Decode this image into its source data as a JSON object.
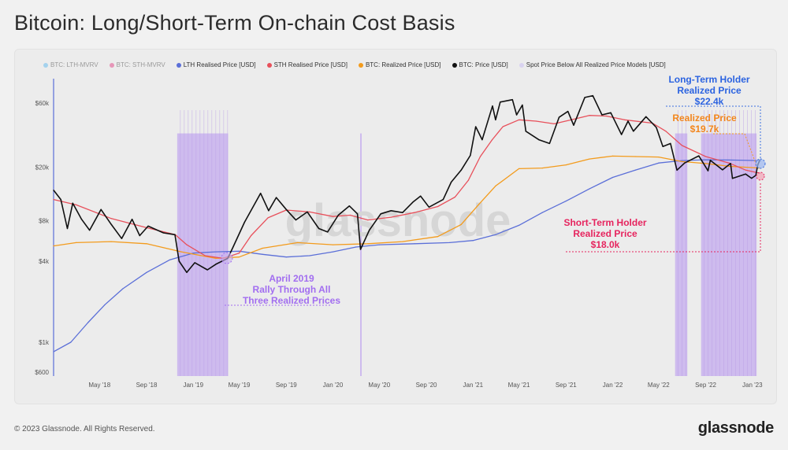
{
  "title": "Bitcoin: Long/Short-Term On-chain Cost Basis",
  "watermark": "glassnode",
  "footer": {
    "copyright": "© 2023 Glassnode. All Rights Reserved.",
    "logo": "glassnode"
  },
  "colors": {
    "lth": "#5b6fd8",
    "sth": "#e8505b",
    "realized": "#f39b1c",
    "price": "#111111",
    "shade": "#c9b3ee",
    "lth_mvrv": "#4fb3f0",
    "sth_mvrv": "#e0307a"
  },
  "legend": [
    {
      "label": "BTC: LTH-MVRV",
      "color": "#4fb3f0",
      "faded": true
    },
    {
      "label": "BTC: STH-MVRV",
      "color": "#e0307a",
      "faded": true
    },
    {
      "label": "LTH Realised Price [USD]",
      "color": "#5b6fd8",
      "faded": false
    },
    {
      "label": "STH Realised Price [USD]",
      "color": "#e8505b",
      "faded": false
    },
    {
      "label": "BTC: Realized Price [USD]",
      "color": "#f39b1c",
      "faded": false
    },
    {
      "label": "BTC: Price [USD]",
      "color": "#111111",
      "faded": false
    },
    {
      "label": "Spot Price Below All Realized Price Models [USD]",
      "color": "#d9d3f0",
      "faded": false
    }
  ],
  "annotations": {
    "april2019": [
      "April 2019",
      "Rally Through All",
      "Three Realized Prices"
    ],
    "lth": [
      "Long-Term Holder",
      "Realized Price",
      "$22.4k"
    ],
    "realized": [
      "Realized Price",
      "$19.7k"
    ],
    "sth": [
      "Short-Term Holder",
      "Realized Price",
      "$18.0k"
    ]
  },
  "chart_data": {
    "type": "line",
    "title": "Bitcoin: Long/Short-Term On-chain Cost Basis",
    "y_scale": "log",
    "ylim": [
      600,
      80000
    ],
    "xlim": [
      "2018-01-01",
      "2023-01-22"
    ],
    "y_ticks": [
      {
        "v": 600,
        "label": "$600"
      },
      {
        "v": 1000,
        "label": "$1k"
      },
      {
        "v": 4000,
        "label": "$4k"
      },
      {
        "v": 8000,
        "label": "$8k"
      },
      {
        "v": 20000,
        "label": "$20k"
      },
      {
        "v": 60000,
        "label": "$60k"
      }
    ],
    "x_ticks": [
      {
        "d": "2018-05-01",
        "label": "May '18"
      },
      {
        "d": "2018-09-01",
        "label": "Sep '18"
      },
      {
        "d": "2019-01-01",
        "label": "Jan '19"
      },
      {
        "d": "2019-05-01",
        "label": "May '19"
      },
      {
        "d": "2019-09-01",
        "label": "Sep '19"
      },
      {
        "d": "2020-01-01",
        "label": "Jan '20"
      },
      {
        "d": "2020-05-01",
        "label": "May '20"
      },
      {
        "d": "2020-09-01",
        "label": "Sep '20"
      },
      {
        "d": "2021-01-01",
        "label": "Jan '21"
      },
      {
        "d": "2021-05-01",
        "label": "May '21"
      },
      {
        "d": "2021-09-01",
        "label": "Sep '21"
      },
      {
        "d": "2022-01-01",
        "label": "Jan '22"
      },
      {
        "d": "2022-05-01",
        "label": "May '22"
      },
      {
        "d": "2022-09-01",
        "label": "Sep '22"
      },
      {
        "d": "2023-01-01",
        "label": "Jan '23"
      }
    ],
    "grid": false,
    "legend_position": "top",
    "shaded_ranges": [
      [
        "2018-11-20",
        "2019-04-02"
      ],
      [
        "2020-03-12",
        "2020-03-14"
      ],
      [
        "2022-06-13",
        "2022-07-15"
      ],
      [
        "2022-08-20",
        "2023-01-12"
      ]
    ],
    "series": [
      {
        "name": "BTC: Price [USD]",
        "key": "price",
        "points": [
          [
            "2018-01-01",
            13500
          ],
          [
            "2018-01-20",
            11500
          ],
          [
            "2018-02-06",
            7000
          ],
          [
            "2018-02-20",
            10800
          ],
          [
            "2018-03-15",
            8200
          ],
          [
            "2018-04-05",
            6800
          ],
          [
            "2018-05-05",
            9700
          ],
          [
            "2018-06-01",
            7500
          ],
          [
            "2018-06-28",
            5900
          ],
          [
            "2018-07-25",
            8200
          ],
          [
            "2018-08-14",
            6200
          ],
          [
            "2018-09-05",
            7300
          ],
          [
            "2018-10-15",
            6500
          ],
          [
            "2018-11-14",
            6300
          ],
          [
            "2018-11-25",
            4000
          ],
          [
            "2018-12-15",
            3300
          ],
          [
            "2019-01-05",
            3900
          ],
          [
            "2019-02-07",
            3450
          ],
          [
            "2019-03-01",
            3800
          ],
          [
            "2019-04-01",
            4200
          ],
          [
            "2019-04-15",
            5100
          ],
          [
            "2019-05-15",
            7800
          ],
          [
            "2019-06-26",
            12800
          ],
          [
            "2019-07-17",
            9500
          ],
          [
            "2019-08-06",
            11900
          ],
          [
            "2019-09-01",
            9700
          ],
          [
            "2019-09-26",
            8100
          ],
          [
            "2019-10-26",
            9300
          ],
          [
            "2019-11-25",
            7000
          ],
          [
            "2019-12-18",
            6600
          ],
          [
            "2020-01-15",
            8800
          ],
          [
            "2020-02-13",
            10300
          ],
          [
            "2020-03-05",
            9000
          ],
          [
            "2020-03-13",
            4900
          ],
          [
            "2020-04-05",
            6800
          ],
          [
            "2020-05-05",
            9000
          ],
          [
            "2020-06-01",
            9500
          ],
          [
            "2020-07-01",
            9200
          ],
          [
            "2020-07-28",
            11000
          ],
          [
            "2020-08-17",
            12200
          ],
          [
            "2020-09-08",
            10100
          ],
          [
            "2020-10-15",
            11500
          ],
          [
            "2020-11-05",
            15500
          ],
          [
            "2020-12-01",
            19000
          ],
          [
            "2020-12-25",
            24500
          ],
          [
            "2021-01-08",
            40000
          ],
          [
            "2021-01-25",
            32000
          ],
          [
            "2021-02-21",
            57000
          ],
          [
            "2021-03-01",
            45000
          ],
          [
            "2021-03-13",
            61000
          ],
          [
            "2021-04-14",
            63500
          ],
          [
            "2021-04-25",
            49000
          ],
          [
            "2021-05-10",
            58000
          ],
          [
            "2021-05-19",
            37000
          ],
          [
            "2021-06-22",
            32000
          ],
          [
            "2021-07-20",
            30000
          ],
          [
            "2021-08-14",
            47000
          ],
          [
            "2021-09-06",
            52000
          ],
          [
            "2021-09-21",
            41000
          ],
          [
            "2021-10-20",
            66000
          ],
          [
            "2021-11-10",
            68000
          ],
          [
            "2021-12-04",
            49000
          ],
          [
            "2021-12-27",
            50800
          ],
          [
            "2022-01-24",
            35000
          ],
          [
            "2022-02-10",
            44000
          ],
          [
            "2022-02-24",
            37000
          ],
          [
            "2022-03-29",
            47500
          ],
          [
            "2022-04-25",
            39500
          ],
          [
            "2022-05-12",
            28500
          ],
          [
            "2022-06-01",
            30000
          ],
          [
            "2022-06-18",
            19000
          ],
          [
            "2022-07-08",
            21500
          ],
          [
            "2022-08-14",
            24300
          ],
          [
            "2022-09-07",
            18800
          ],
          [
            "2022-09-13",
            22500
          ],
          [
            "2022-10-15",
            19100
          ],
          [
            "2022-11-05",
            21300
          ],
          [
            "2022-11-10",
            16500
          ],
          [
            "2022-12-14",
            17800
          ],
          [
            "2022-12-30",
            16550
          ],
          [
            "2023-01-10",
            17400
          ],
          [
            "2023-01-15",
            20800
          ],
          [
            "2023-01-21",
            22700
          ]
        ]
      },
      {
        "name": "STH Realised Price [USD]",
        "key": "sth",
        "points": [
          [
            "2018-01-01",
            11500
          ],
          [
            "2018-03-01",
            10500
          ],
          [
            "2018-06-01",
            8300
          ],
          [
            "2018-09-01",
            7100
          ],
          [
            "2018-11-15",
            6300
          ],
          [
            "2018-12-15",
            5300
          ],
          [
            "2019-02-01",
            4400
          ],
          [
            "2019-03-20",
            4200
          ],
          [
            "2019-05-01",
            4600
          ],
          [
            "2019-06-01",
            6200
          ],
          [
            "2019-07-15",
            8400
          ],
          [
            "2019-09-01",
            9600
          ],
          [
            "2019-11-01",
            9300
          ],
          [
            "2020-01-01",
            8600
          ],
          [
            "2020-02-15",
            8800
          ],
          [
            "2020-04-01",
            8100
          ],
          [
            "2020-06-01",
            8500
          ],
          [
            "2020-08-01",
            9200
          ],
          [
            "2020-10-01",
            10200
          ],
          [
            "2020-11-15",
            12000
          ],
          [
            "2020-12-20",
            16000
          ],
          [
            "2021-01-20",
            24000
          ],
          [
            "2021-02-20",
            32000
          ],
          [
            "2021-03-20",
            40000
          ],
          [
            "2021-05-01",
            45000
          ],
          [
            "2021-06-15",
            44000
          ],
          [
            "2021-08-01",
            42000
          ],
          [
            "2021-09-15",
            45000
          ],
          [
            "2021-11-01",
            48500
          ],
          [
            "2021-12-15",
            48000
          ],
          [
            "2022-02-01",
            45000
          ],
          [
            "2022-04-15",
            42500
          ],
          [
            "2022-05-20",
            37000
          ],
          [
            "2022-07-01",
            29000
          ],
          [
            "2022-09-01",
            24000
          ],
          [
            "2022-11-01",
            21500
          ],
          [
            "2022-12-15",
            19000
          ],
          [
            "2023-01-21",
            18000
          ]
        ]
      },
      {
        "name": "BTC: Realized Price [USD]",
        "key": "realized",
        "points": [
          [
            "2018-01-01",
            5200
          ],
          [
            "2018-03-01",
            5500
          ],
          [
            "2018-06-01",
            5600
          ],
          [
            "2018-09-01",
            5400
          ],
          [
            "2018-12-01",
            4700
          ],
          [
            "2019-03-01",
            4200
          ],
          [
            "2019-05-01",
            4300
          ],
          [
            "2019-07-01",
            5000
          ],
          [
            "2019-10-01",
            5500
          ],
          [
            "2020-01-01",
            5300
          ],
          [
            "2020-04-01",
            5400
          ],
          [
            "2020-07-01",
            5600
          ],
          [
            "2020-10-01",
            6100
          ],
          [
            "2020-12-01",
            7500
          ],
          [
            "2021-01-15",
            10500
          ],
          [
            "2021-03-01",
            14500
          ],
          [
            "2021-05-01",
            19500
          ],
          [
            "2021-07-01",
            19700
          ],
          [
            "2021-09-01",
            20800
          ],
          [
            "2021-11-01",
            23000
          ],
          [
            "2022-01-01",
            24200
          ],
          [
            "2022-03-01",
            24000
          ],
          [
            "2022-05-01",
            23800
          ],
          [
            "2022-07-01",
            22000
          ],
          [
            "2022-09-01",
            21300
          ],
          [
            "2022-11-01",
            20300
          ],
          [
            "2023-01-21",
            19700
          ]
        ]
      },
      {
        "name": "LTH Realised Price [USD]",
        "key": "lth",
        "points": [
          [
            "2018-01-01",
            850
          ],
          [
            "2018-02-15",
            1000
          ],
          [
            "2018-04-01",
            1400
          ],
          [
            "2018-05-15",
            1900
          ],
          [
            "2018-07-01",
            2500
          ],
          [
            "2018-09-01",
            3300
          ],
          [
            "2018-11-01",
            4100
          ],
          [
            "2019-01-01",
            4600
          ],
          [
            "2019-03-01",
            4700
          ],
          [
            "2019-05-01",
            4750
          ],
          [
            "2019-07-01",
            4500
          ],
          [
            "2019-09-01",
            4300
          ],
          [
            "2019-11-01",
            4400
          ],
          [
            "2020-01-01",
            4700
          ],
          [
            "2020-03-01",
            5100
          ],
          [
            "2020-05-01",
            5300
          ],
          [
            "2020-08-01",
            5400
          ],
          [
            "2020-11-01",
            5500
          ],
          [
            "2021-01-01",
            5700
          ],
          [
            "2021-03-01",
            6300
          ],
          [
            "2021-05-01",
            7400
          ],
          [
            "2021-07-01",
            9200
          ],
          [
            "2021-09-01",
            11200
          ],
          [
            "2021-11-01",
            13800
          ],
          [
            "2022-01-01",
            16800
          ],
          [
            "2022-03-01",
            19000
          ],
          [
            "2022-05-01",
            21500
          ],
          [
            "2022-07-01",
            22400
          ],
          [
            "2022-09-01",
            22700
          ],
          [
            "2022-11-01",
            22600
          ],
          [
            "2023-01-21",
            22400
          ]
        ]
      }
    ]
  }
}
